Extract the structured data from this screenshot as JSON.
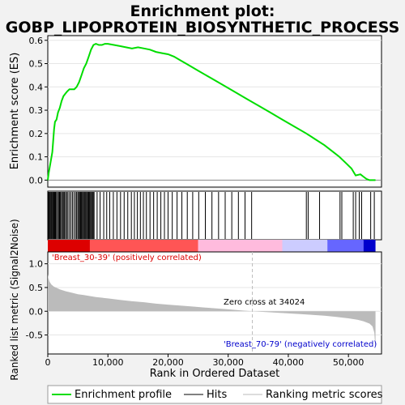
{
  "chart_data": {
    "type": "line",
    "title_line1": "Enrichment plot:",
    "title_line2": "GOBP_LIPOPROTEIN_BIOSYNTHETIC_PROCESS",
    "top_panel": {
      "ylabel": "Enrichment score (ES)",
      "ylim": [
        -0.03,
        0.62
      ],
      "yticks": [
        0.0,
        0.1,
        0.2,
        0.3,
        0.4,
        0.5,
        0.6
      ],
      "ytick_labels": [
        "0.0",
        "0.1",
        "0.2",
        "0.3",
        "0.4",
        "0.5",
        "0.6"
      ],
      "line_color": "#00dd00",
      "profile": [
        [
          0,
          0.0
        ],
        [
          150,
          0.03
        ],
        [
          350,
          0.06
        ],
        [
          550,
          0.09
        ],
        [
          750,
          0.12
        ],
        [
          900,
          0.17
        ],
        [
          1050,
          0.22
        ],
        [
          1200,
          0.25
        ],
        [
          1450,
          0.26
        ],
        [
          1700,
          0.29
        ],
        [
          2000,
          0.31
        ],
        [
          2300,
          0.34
        ],
        [
          2600,
          0.36
        ],
        [
          2900,
          0.37
        ],
        [
          3200,
          0.38
        ],
        [
          3600,
          0.39
        ],
        [
          4000,
          0.39
        ],
        [
          4400,
          0.39
        ],
        [
          4800,
          0.4
        ],
        [
          5200,
          0.42
        ],
        [
          5600,
          0.45
        ],
        [
          6000,
          0.48
        ],
        [
          6400,
          0.5
        ],
        [
          6800,
          0.53
        ],
        [
          7200,
          0.56
        ],
        [
          7600,
          0.58
        ],
        [
          8000,
          0.585
        ],
        [
          8500,
          0.58
        ],
        [
          9000,
          0.58
        ],
        [
          9500,
          0.585
        ],
        [
          10000,
          0.585
        ],
        [
          11000,
          0.58
        ],
        [
          12000,
          0.575
        ],
        [
          13000,
          0.57
        ],
        [
          14000,
          0.565
        ],
        [
          15000,
          0.57
        ],
        [
          16000,
          0.565
        ],
        [
          17000,
          0.56
        ],
        [
          18000,
          0.55
        ],
        [
          19000,
          0.545
        ],
        [
          20000,
          0.54
        ],
        [
          21000,
          0.53
        ],
        [
          22000,
          0.515
        ],
        [
          23000,
          0.5
        ],
        [
          25000,
          0.47
        ],
        [
          27000,
          0.44
        ],
        [
          29000,
          0.41
        ],
        [
          31000,
          0.38
        ],
        [
          33000,
          0.35
        ],
        [
          35000,
          0.32
        ],
        [
          37000,
          0.29
        ],
        [
          39000,
          0.26
        ],
        [
          41000,
          0.23
        ],
        [
          43000,
          0.2
        ],
        [
          44500,
          0.175
        ],
        [
          46000,
          0.15
        ],
        [
          47500,
          0.12
        ],
        [
          48500,
          0.1
        ],
        [
          49500,
          0.075
        ],
        [
          50500,
          0.05
        ],
        [
          51200,
          0.02
        ],
        [
          52000,
          0.025
        ],
        [
          52500,
          0.015
        ],
        [
          53000,
          0.005
        ],
        [
          53500,
          0.0
        ],
        [
          54000,
          0.0
        ],
        [
          54500,
          0.0
        ]
      ]
    },
    "hits": [
      120,
      250,
      380,
      520,
      640,
      780,
      900,
      1020,
      1150,
      1280,
      1450,
      1620,
      1800,
      1950,
      2100,
      2280,
      2450,
      2600,
      2780,
      2950,
      3150,
      3350,
      3600,
      3850,
      4100,
      4350,
      4600,
      4800,
      5000,
      5150,
      5300,
      5450,
      5600,
      5750,
      5900,
      6050,
      6200,
      6350,
      6500,
      6650,
      6800,
      6950,
      7100,
      7250,
      7400,
      7550,
      7700,
      8200,
      8700,
      9300,
      9800,
      10300,
      10900,
      11500,
      12100,
      12700,
      13300,
      13900,
      14400,
      14900,
      15400,
      15900,
      16400,
      17000,
      17600,
      18200,
      18800,
      19400,
      20000,
      20700,
      21500,
      22300,
      23200,
      24100,
      25100,
      26200,
      27300,
      28400,
      29500,
      30600,
      31700,
      32800,
      33900,
      43000,
      43300,
      45200,
      48600,
      48900,
      50800,
      51200,
      51800,
      52200,
      53700,
      54300
    ],
    "bottom_panel": {
      "ylabel": "Ranked list metric (Signal2Noise)",
      "xlabel": "Rank in Ordered Dataset",
      "ylim": [
        -0.9,
        1.25
      ],
      "yticks": [
        -0.5,
        0.0,
        0.5,
        1.0
      ],
      "ytick_labels": [
        "-0.5",
        "0.0",
        "0.5",
        "1.0"
      ],
      "metric_curve": [
        [
          0,
          0.78
        ],
        [
          100,
          0.7
        ],
        [
          300,
          0.62
        ],
        [
          600,
          0.56
        ],
        [
          1000,
          0.52
        ],
        [
          1500,
          0.49
        ],
        [
          2000,
          0.46
        ],
        [
          3000,
          0.42
        ],
        [
          4000,
          0.39
        ],
        [
          5000,
          0.36
        ],
        [
          6000,
          0.34
        ],
        [
          8000,
          0.3
        ],
        [
          10000,
          0.27
        ],
        [
          12000,
          0.24
        ],
        [
          14000,
          0.21
        ],
        [
          16000,
          0.19
        ],
        [
          18000,
          0.16
        ],
        [
          20000,
          0.14
        ],
        [
          22000,
          0.12
        ],
        [
          24000,
          0.1
        ],
        [
          26000,
          0.08
        ],
        [
          28000,
          0.06
        ],
        [
          30000,
          0.04
        ],
        [
          32000,
          0.02
        ],
        [
          34024,
          0.0
        ],
        [
          36000,
          -0.015
        ],
        [
          38000,
          -0.03
        ],
        [
          40000,
          -0.045
        ],
        [
          42000,
          -0.06
        ],
        [
          44000,
          -0.075
        ],
        [
          46000,
          -0.095
        ],
        [
          48000,
          -0.12
        ],
        [
          50000,
          -0.15
        ],
        [
          51500,
          -0.18
        ],
        [
          52500,
          -0.21
        ],
        [
          53500,
          -0.26
        ],
        [
          54000,
          -0.32
        ],
        [
          54300,
          -0.45
        ],
        [
          54500,
          -0.82
        ]
      ],
      "zero_cross_label": "Zero cross at 34024",
      "zero_cross": 34024,
      "pos_label": "'Breast_30-39' (positively correlated)",
      "neg_label": "'Breast_70-79' (negatively correlated)",
      "pos_color": "#ff0000",
      "neg_color": "#0000ff"
    },
    "xlim": [
      0,
      55500
    ],
    "xticks": [
      0,
      10000,
      20000,
      30000,
      40000,
      50000
    ],
    "xtick_labels": [
      "0",
      "10,000",
      "20,000",
      "30,000",
      "40,000",
      "50,000"
    ],
    "color_bar_segments": [
      {
        "start": 0,
        "end": 7000,
        "color": "#dd0000"
      },
      {
        "start": 7000,
        "end": 25000,
        "color": "#ff5555"
      },
      {
        "start": 25000,
        "end": 39000,
        "color": "#ffbbdd"
      },
      {
        "start": 39000,
        "end": 46500,
        "color": "#ccccff"
      },
      {
        "start": 46500,
        "end": 52500,
        "color": "#6666ff"
      },
      {
        "start": 52500,
        "end": 54500,
        "color": "#0000cc"
      }
    ],
    "legend": [
      {
        "label": "Enrichment profile",
        "color": "#00dd00"
      },
      {
        "label": "Hits",
        "color": "#000000"
      },
      {
        "label": "Ranking metric scores",
        "color": "#bbbbbb"
      }
    ]
  }
}
